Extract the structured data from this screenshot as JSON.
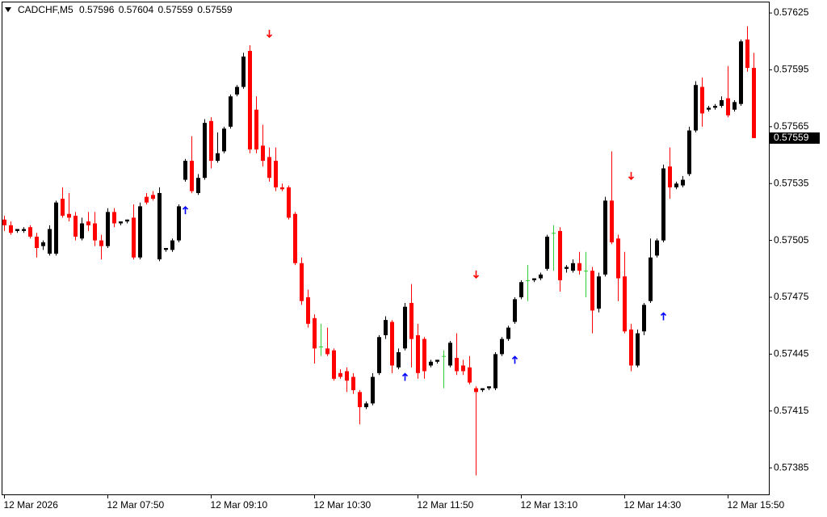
{
  "chart_data": {
    "type": "candlestick",
    "title": "CADCHF,M5",
    "categories": [
      "12 Mar 2026",
      null,
      null,
      null,
      null,
      null,
      null,
      null,
      null,
      null,
      null,
      null,
      null,
      null,
      null,
      null,
      "12 Mar 07:50",
      null,
      null,
      null,
      null,
      null,
      null,
      null,
      null,
      null,
      null,
      null,
      null,
      null,
      null,
      null,
      "12 Mar 09:10",
      null,
      null,
      null,
      null,
      null,
      null,
      null,
      null,
      null,
      null,
      null,
      null,
      null,
      null,
      null,
      "12 Mar 10:30",
      null,
      null,
      null,
      null,
      null,
      null,
      null,
      null,
      null,
      null,
      null,
      null,
      null,
      null,
      null,
      "12 Mar 11:50",
      null,
      null,
      null,
      null,
      null,
      null,
      null,
      null,
      null,
      null,
      null,
      null,
      null,
      null,
      null,
      "12 Mar 13:10",
      null,
      null,
      null,
      null,
      null,
      null,
      null,
      null,
      null,
      null,
      null,
      null,
      null,
      null,
      null,
      "12 Mar 14:30",
      null,
      null,
      null,
      null,
      null,
      null,
      null,
      null,
      null,
      null,
      null,
      null,
      null,
      null,
      null,
      "12 Mar 15:50",
      null,
      null,
      null,
      null
    ],
    "open": [
      0.57516,
      0.57513,
      0.5751,
      0.5751,
      0.57512,
      0.57507,
      0.57502,
      0.57498,
      0.57498,
      0.57527,
      0.57519,
      0.57518,
      0.57506,
      0.57515,
      0.57514,
      0.57505,
      0.57502,
      0.5752,
      0.57514,
      0.57515,
      0.57517,
      0.57496,
      0.57528,
      0.57529,
      0.57495,
      0.575,
      0.575,
      0.57505,
      0.57537,
      0.57547,
      0.5753,
      0.57538,
      0.57568,
      0.57547,
      0.57552,
      0.57565,
      0.57582,
      0.57586,
      0.57605,
      0.57574,
      0.57555,
      0.57549,
      0.57547,
      0.57533,
      0.57533,
      0.57519,
      0.57493,
      0.57475,
      0.57464,
      0.57449,
      0.57448,
      0.57447,
      0.57435,
      0.57436,
      0.57433,
      0.57425,
      0.57417,
      0.57419,
      0.57435,
      0.57455,
      0.57462,
      0.57438,
      0.57448,
      0.57472,
      0.57455,
      0.57453,
      0.57439,
      0.57441,
      0.57444,
      0.57439,
      0.57443,
      0.57439,
      0.57438,
      0.57427,
      0.57426,
      0.57427,
      0.57427,
      0.57445,
      0.57453,
      0.57462,
      0.57475,
      0.57484,
      0.57484,
      0.57485,
      0.5749,
      0.57509,
      0.5751,
      0.5749,
      0.57489,
      0.57493,
      0.57489,
      0.57489,
      0.57469,
      0.57487,
      0.57526,
      0.57506,
      0.57486,
      0.57458,
      0.57439,
      0.57457,
      0.57473,
      0.57497,
      0.57505,
      0.57544,
      0.57533,
      0.57534,
      0.5754,
      0.57563,
      0.57586,
      0.57574,
      0.57575,
      0.57576,
      0.5758,
      0.57574,
      0.57577,
      0.57611,
      0.57596
    ],
    "high": [
      0.57518,
      0.57515,
      0.57511,
      0.57512,
      0.57513,
      0.57509,
      0.57505,
      0.57513,
      0.57526,
      0.57533,
      0.5753,
      0.5752,
      0.57517,
      0.5752,
      0.5752,
      0.57508,
      0.57522,
      0.57522,
      0.57515,
      0.57516,
      0.57524,
      0.57525,
      0.5753,
      0.57531,
      0.57533,
      0.57501,
      0.57506,
      0.57524,
      0.57548,
      0.5756,
      0.5754,
      0.57569,
      0.5757,
      0.57562,
      0.57565,
      0.57582,
      0.57587,
      0.57604,
      0.57608,
      0.57581,
      0.57566,
      0.57554,
      0.57554,
      0.57535,
      0.57534,
      0.5752,
      0.57496,
      0.57479,
      0.57466,
      0.57461,
      0.57459,
      0.57448,
      0.57437,
      0.57438,
      0.57435,
      0.57426,
      0.5742,
      0.57435,
      0.57455,
      0.57465,
      0.57463,
      0.57448,
      0.57472,
      0.57482,
      0.57461,
      0.57454,
      0.57442,
      0.57442,
      0.57447,
      0.57452,
      0.57456,
      0.57442,
      0.57444,
      0.57428,
      0.57427,
      0.57428,
      0.57446,
      0.57454,
      0.5746,
      0.57475,
      0.57484,
      0.57492,
      0.57485,
      0.57488,
      0.57508,
      0.57513,
      0.57512,
      0.57492,
      0.57495,
      0.57499,
      0.57499,
      0.57491,
      0.57488,
      0.57528,
      0.57552,
      0.57508,
      0.57499,
      0.57461,
      0.57458,
      0.57472,
      0.57506,
      0.57506,
      0.57545,
      0.57554,
      0.57536,
      0.57539,
      0.57565,
      0.57589,
      0.57591,
      0.57576,
      0.57577,
      0.57581,
      0.57597,
      0.57579,
      0.57611,
      0.57618,
      0.57604
    ],
    "low": [
      0.5751,
      0.57508,
      0.57509,
      0.57509,
      0.57506,
      0.57496,
      0.575,
      0.57497,
      0.57497,
      0.57517,
      0.57515,
      0.57505,
      0.57505,
      0.5751,
      0.57502,
      0.57495,
      0.57501,
      0.57512,
      0.57513,
      0.57514,
      0.57495,
      0.57495,
      0.57524,
      0.57526,
      0.57494,
      0.57499,
      0.57499,
      0.57504,
      0.57536,
      0.5753,
      0.57529,
      0.57537,
      0.57543,
      0.57546,
      0.57551,
      0.57564,
      0.57581,
      0.57585,
      0.57551,
      0.57551,
      0.57544,
      0.57536,
      0.57531,
      0.57531,
      0.57516,
      0.57492,
      0.57471,
      0.57459,
      0.5744,
      0.57444,
      0.57444,
      0.57431,
      0.57432,
      0.57425,
      0.57424,
      0.57408,
      0.57416,
      0.57418,
      0.57434,
      0.57453,
      0.57435,
      0.57437,
      0.57447,
      0.57438,
      0.57432,
      0.57432,
      0.57438,
      0.5744,
      0.57427,
      0.57438,
      0.57434,
      0.57434,
      0.57429,
      0.57381,
      0.57425,
      0.57426,
      0.57426,
      0.57444,
      0.57452,
      0.57461,
      0.57474,
      0.57473,
      0.57483,
      0.57484,
      0.57489,
      0.57489,
      0.57478,
      0.57488,
      0.57488,
      0.57487,
      0.57475,
      0.57456,
      0.57467,
      0.57486,
      0.57503,
      0.57473,
      0.57456,
      0.57436,
      0.57438,
      0.57455,
      0.57472,
      0.57496,
      0.57504,
      0.57527,
      0.57532,
      0.57533,
      0.57539,
      0.57562,
      0.57565,
      0.57573,
      0.57574,
      0.57575,
      0.5757,
      0.57573,
      0.57576,
      0.57594,
      0.57559
    ],
    "close": [
      0.57513,
      0.57509,
      0.57511,
      0.57511,
      0.57507,
      0.57501,
      0.57504,
      0.57511,
      0.57525,
      0.57518,
      0.57517,
      0.57507,
      0.57514,
      0.57513,
      0.57505,
      0.57502,
      0.5752,
      0.57514,
      0.57515,
      0.57516,
      0.57496,
      0.57523,
      0.57525,
      0.57527,
      0.5753,
      0.57501,
      0.57505,
      0.57523,
      0.57547,
      0.57531,
      0.57538,
      0.57567,
      0.57547,
      0.57551,
      0.57564,
      0.57581,
      0.57586,
      0.57602,
      0.57553,
      0.57553,
      0.57547,
      0.57538,
      0.57533,
      0.57532,
      0.57517,
      0.57493,
      0.57473,
      0.57461,
      0.57448,
      0.57449,
      0.57445,
      0.57432,
      0.57433,
      0.57431,
      0.57426,
      0.57417,
      0.57419,
      0.57433,
      0.57454,
      0.57463,
      0.57439,
      0.57446,
      0.5747,
      0.57453,
      0.57435,
      0.57436,
      0.57441,
      0.57442,
      0.57444,
      0.57451,
      0.57436,
      0.57436,
      0.5743,
      0.57425,
      0.57427,
      0.57428,
      0.57445,
      0.57453,
      0.57459,
      0.57474,
      0.57483,
      0.57484,
      0.57485,
      0.57487,
      0.57507,
      0.57509,
      0.57484,
      0.57491,
      0.57493,
      0.57489,
      0.57489,
      0.57468,
      0.57486,
      0.57526,
      0.57504,
      0.57485,
      0.57457,
      0.57439,
      0.57456,
      0.57471,
      0.57496,
      0.57505,
      0.57543,
      0.57533,
      0.57535,
      0.57537,
      0.57563,
      0.57587,
      0.57572,
      0.57575,
      0.57576,
      0.57579,
      0.57571,
      0.57578,
      0.5761,
      0.57596,
      0.57559
    ],
    "colors": {
      "up": "#000000",
      "down": "#ff0000",
      "doji": "#32cd32"
    },
    "signals": [
      {
        "index": 28,
        "direction": "up",
        "price": 0.57521
      },
      {
        "index": 41,
        "direction": "down",
        "price": 0.57614
      },
      {
        "index": 62,
        "direction": "up",
        "price": 0.57433
      },
      {
        "index": 73,
        "direction": "down",
        "price": 0.57487
      },
      {
        "index": 79,
        "direction": "up",
        "price": 0.57442
      },
      {
        "index": 97,
        "direction": "down",
        "price": 0.57539
      },
      {
        "index": 102,
        "direction": "up",
        "price": 0.57465
      }
    ],
    "signal_colors": {
      "up": "#0000ff",
      "down": "#ff0000"
    },
    "ylim": [
      0.57371,
      0.57631
    ],
    "yticks": [
      0.57625,
      0.57595,
      0.57565,
      0.57535,
      0.57505,
      0.57475,
      0.57445,
      0.57415,
      0.57385
    ],
    "grid": false
  }
}
